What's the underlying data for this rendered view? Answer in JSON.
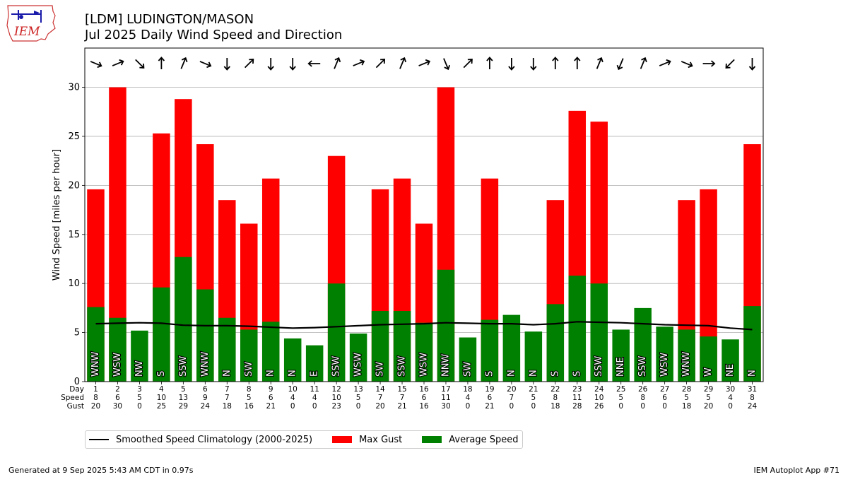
{
  "header": {
    "logo_text": "IEM",
    "title_line1": "[LDM] LUDINGTON/MASON",
    "title_line2": "Jul 2025 Daily Wind Speed and Direction"
  },
  "footer": {
    "generated": "Generated at 9 Sep 2025 5:43 AM CDT in 0.97s",
    "app": "IEM Autoplot App #71"
  },
  "legend": {
    "climatology": "Smoothed Speed Climatology (2000-2025)",
    "gust": "Max Gust",
    "average": "Average Speed"
  },
  "colors": {
    "gust": "#ff0000",
    "average": "#008000",
    "climatology": "#000000",
    "grid": "#b0b0b0"
  },
  "chart_data": {
    "type": "bar",
    "title": "[LDM] LUDINGTON/MASON",
    "subtitle": "Jul 2025 Daily Wind Speed and Direction",
    "ylabel": "Wind Speed [miles per hour]",
    "ylim": [
      0,
      34
    ],
    "yticks": [
      0,
      5,
      10,
      15,
      20,
      25,
      30
    ],
    "grid": true,
    "legend_position": "bottom",
    "row_labels": [
      "Day",
      "Speed",
      "Gust"
    ],
    "days": [
      1,
      2,
      3,
      4,
      5,
      6,
      7,
      8,
      9,
      10,
      11,
      12,
      13,
      14,
      15,
      16,
      17,
      18,
      19,
      20,
      21,
      22,
      23,
      24,
      25,
      26,
      27,
      28,
      29,
      30,
      31
    ],
    "speed_labels": [
      8,
      6,
      5,
      10,
      13,
      9,
      7,
      5,
      6,
      4,
      4,
      10,
      5,
      7,
      7,
      6,
      11,
      4,
      6,
      7,
      5,
      8,
      11,
      10,
      5,
      8,
      6,
      5,
      5,
      4,
      8
    ],
    "gust_labels": [
      20,
      30,
      0,
      25,
      29,
      24,
      18,
      16,
      21,
      0,
      0,
      23,
      0,
      20,
      21,
      16,
      30,
      0,
      21,
      0,
      0,
      18,
      28,
      26,
      0,
      0,
      0,
      18,
      20,
      0,
      24
    ],
    "avg_speed": [
      7.6,
      6.5,
      5.2,
      9.6,
      12.7,
      9.4,
      6.5,
      5.3,
      6.1,
      4.4,
      3.7,
      10.0,
      4.9,
      7.2,
      7.2,
      6.0,
      11.4,
      4.5,
      6.3,
      6.8,
      5.1,
      7.9,
      10.8,
      10.0,
      5.3,
      7.5,
      5.6,
      5.3,
      4.6,
      4.3,
      7.7
    ],
    "max_gust": [
      19.6,
      30.0,
      0,
      25.3,
      28.8,
      24.2,
      18.5,
      16.1,
      20.7,
      0,
      0,
      23.0,
      0,
      19.6,
      20.7,
      16.1,
      30.0,
      0,
      20.7,
      0,
      0,
      18.5,
      27.6,
      26.5,
      0,
      0,
      0,
      18.5,
      19.6,
      0,
      24.2
    ],
    "direction_labels": [
      "WNW",
      "WSW",
      "NW",
      "S",
      "SSW",
      "WNW",
      "N",
      "SW",
      "N",
      "N",
      "E",
      "SSW",
      "WSW",
      "SW",
      "SSW",
      "WSW",
      "NNW",
      "SW",
      "S",
      "N",
      "N",
      "S",
      "S",
      "SSW",
      "NNE",
      "SSW",
      "WSW",
      "WNW",
      "W",
      "NE",
      "N"
    ],
    "climatology": [
      5.9,
      5.95,
      6.0,
      5.95,
      5.75,
      5.7,
      5.7,
      5.65,
      5.55,
      5.45,
      5.5,
      5.6,
      5.7,
      5.8,
      5.85,
      5.9,
      6.0,
      5.95,
      5.9,
      5.9,
      5.8,
      5.9,
      6.1,
      6.05,
      6.0,
      5.9,
      5.8,
      5.75,
      5.7,
      5.45,
      5.3
    ]
  }
}
